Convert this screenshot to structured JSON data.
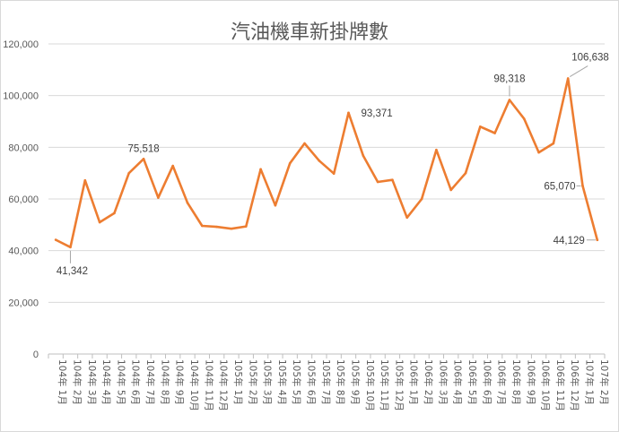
{
  "chart_data": {
    "type": "line",
    "title": "汽油機車新掛牌數",
    "xlabel": "",
    "ylabel": "",
    "ylim": [
      0,
      120000
    ],
    "yticks": [
      0,
      20000,
      40000,
      60000,
      80000,
      100000,
      120000
    ],
    "ytick_labels": [
      "0",
      "20,000",
      "40,000",
      "60,000",
      "80,000",
      "100,000",
      "120,000"
    ],
    "grid": true,
    "legend": "none",
    "line_color": "#ED7D31",
    "categories": [
      "104年 1月",
      "104年 2月",
      "104年 3月",
      "104年 4月",
      "104年 5月",
      "104年 6月",
      "104年 7月",
      "104年 8月",
      "104年 9月",
      "104年 10月",
      "104年 11月",
      "104年 12月",
      "105年 1月",
      "105年 2月",
      "105年 3月",
      "105年 4月",
      "105年 5月",
      "105年 6月",
      "105年 7月",
      "105年 8月",
      "105年 9月",
      "105年 10月",
      "105年 11月",
      "105年 12月",
      "106年 1月",
      "106年 2月",
      "106年 3月",
      "106年 4月",
      "106年 5月",
      "106年 6月",
      "106年 7月",
      "106年 8月",
      "106年 9月",
      "106年 10月",
      "106年 11月",
      "106年 12月",
      "107年 1月",
      "107年 2月"
    ],
    "values": [
      44200,
      41342,
      67200,
      51000,
      54500,
      70000,
      75518,
      60500,
      72800,
      58500,
      49600,
      49200,
      48500,
      49400,
      71500,
      57500,
      73800,
      81500,
      74800,
      69800,
      93371,
      76800,
      66600,
      67400,
      52800,
      60000,
      79000,
      63500,
      70000,
      88000,
      85500,
      98318,
      91000,
      78000,
      81500,
      106638,
      65070,
      44129
    ],
    "data_labels": [
      {
        "index": 1,
        "text": "41,342"
      },
      {
        "index": 6,
        "text": "75,518"
      },
      {
        "index": 20,
        "text": "93,371"
      },
      {
        "index": 31,
        "text": "98,318"
      },
      {
        "index": 35,
        "text": "106,638"
      },
      {
        "index": 36,
        "text": "65,070"
      },
      {
        "index": 37,
        "text": "44,129"
      }
    ]
  }
}
